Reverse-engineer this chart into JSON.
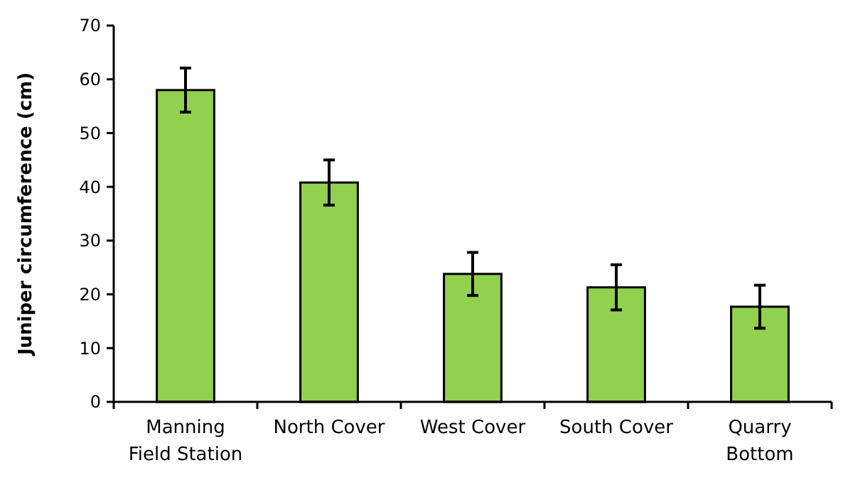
{
  "chart_data": {
    "type": "bar",
    "ylabel": "Juniper circumference (cm)",
    "categories": [
      "Manning Field Station",
      "North Cover",
      "West Cover",
      "South Cover",
      "Quarry Bottom"
    ],
    "values": [
      58,
      40.8,
      23.8,
      21.3,
      17.7
    ],
    "errors": [
      4.1,
      4.2,
      4,
      4.2,
      4
    ],
    "color": "#92d050",
    "ylim": [
      0,
      70
    ],
    "yticks": [
      0,
      10,
      20,
      30,
      40,
      50,
      60,
      70
    ],
    "grid": false
  }
}
